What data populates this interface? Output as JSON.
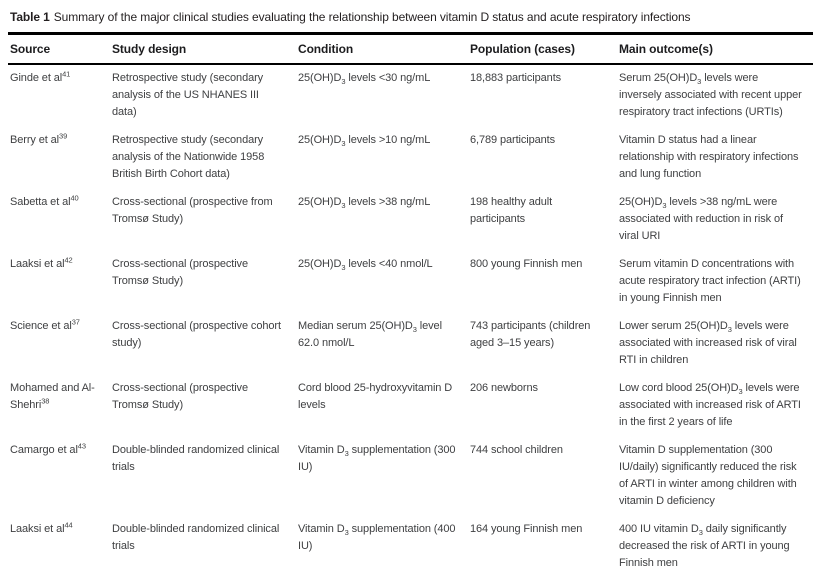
{
  "title": {
    "label": "Table 1",
    "text": "Summary of the major clinical studies evaluating the relationship between vitamin D status and acute respiratory infections"
  },
  "table": {
    "columns": [
      "Source",
      "Study design",
      "Condition",
      "Population (cases)",
      "Main outcome(s)"
    ],
    "rows": [
      {
        "source": "Ginde et al^41^",
        "design": "Retrospective study (secondary analysis of the US NHANES III data)",
        "condition": "25(OH)D~3~ levels <30 ng/mL",
        "population": "18,883 participants",
        "outcome": "Serum 25(OH)D~3~ levels were inversely associated with recent upper respiratory tract infections (URTIs)"
      },
      {
        "source": "Berry et al^39^",
        "design": "Retrospective study (secondary analysis of the Nationwide 1958 British Birth Cohort data)",
        "condition": "25(OH)D~3~ levels >10 ng/mL",
        "population": "6,789 participants",
        "outcome": "Vitamin D status had a linear relationship with respiratory infections and lung function"
      },
      {
        "source": "Sabetta et al^40^",
        "design": "Cross-sectional (prospective from Tromsø Study)",
        "condition": "25(OH)D~3~ levels >38 ng/mL",
        "population": "198 healthy adult participants",
        "outcome": "25(OH)D~3~ levels >38 ng/mL were associated with reduction in risk of viral URI"
      },
      {
        "source": "Laaksi et al^42^",
        "design": "Cross-sectional (prospective Tromsø Study)",
        "condition": "25(OH)D~3~ levels <40 nmol/L",
        "population": "800 young Finnish men",
        "outcome": "Serum vitamin D concentrations with acute respiratory tract infection (ARTI) in young Finnish men"
      },
      {
        "source": "Science et al^37^",
        "design": "Cross-sectional (prospective cohort study)",
        "condition": "Median serum 25(OH)D~3~ level 62.0 nmol/L",
        "population": "743 participants (children aged 3–15 years)",
        "outcome": "Lower serum 25(OH)D~3~ levels were associated with increased risk of viral RTI in children"
      },
      {
        "source": "Mohamed and Al-Shehri^38^",
        "design": "Cross-sectional (prospective Tromsø Study)",
        "condition": "Cord blood 25-hydroxyvitamin D levels",
        "population": "206 newborns",
        "outcome": "Low cord blood 25(OH)D~3~ levels were associated with increased risk of ARTI in the first 2 years of life"
      },
      {
        "source": "Camargo et al^43^",
        "design": "Double-blinded randomized clinical trials",
        "condition": "Vitamin D~3~ supplementation (300 IU)",
        "population": "744 school children",
        "outcome": "Vitamin D supplementation (300 IU/daily) significantly reduced the risk of ARTI in winter among children with vitamin D deficiency"
      },
      {
        "source": "Laaksi et al^44^",
        "design": "Double-blinded randomized clinical trials",
        "condition": "Vitamin D~3~ supplementation (400 IU)",
        "population": "164 young Finnish men",
        "outcome": "400 IU vitamin D~3~ daily significantly decreased the risk of ARTI in young Finnish men"
      }
    ]
  }
}
